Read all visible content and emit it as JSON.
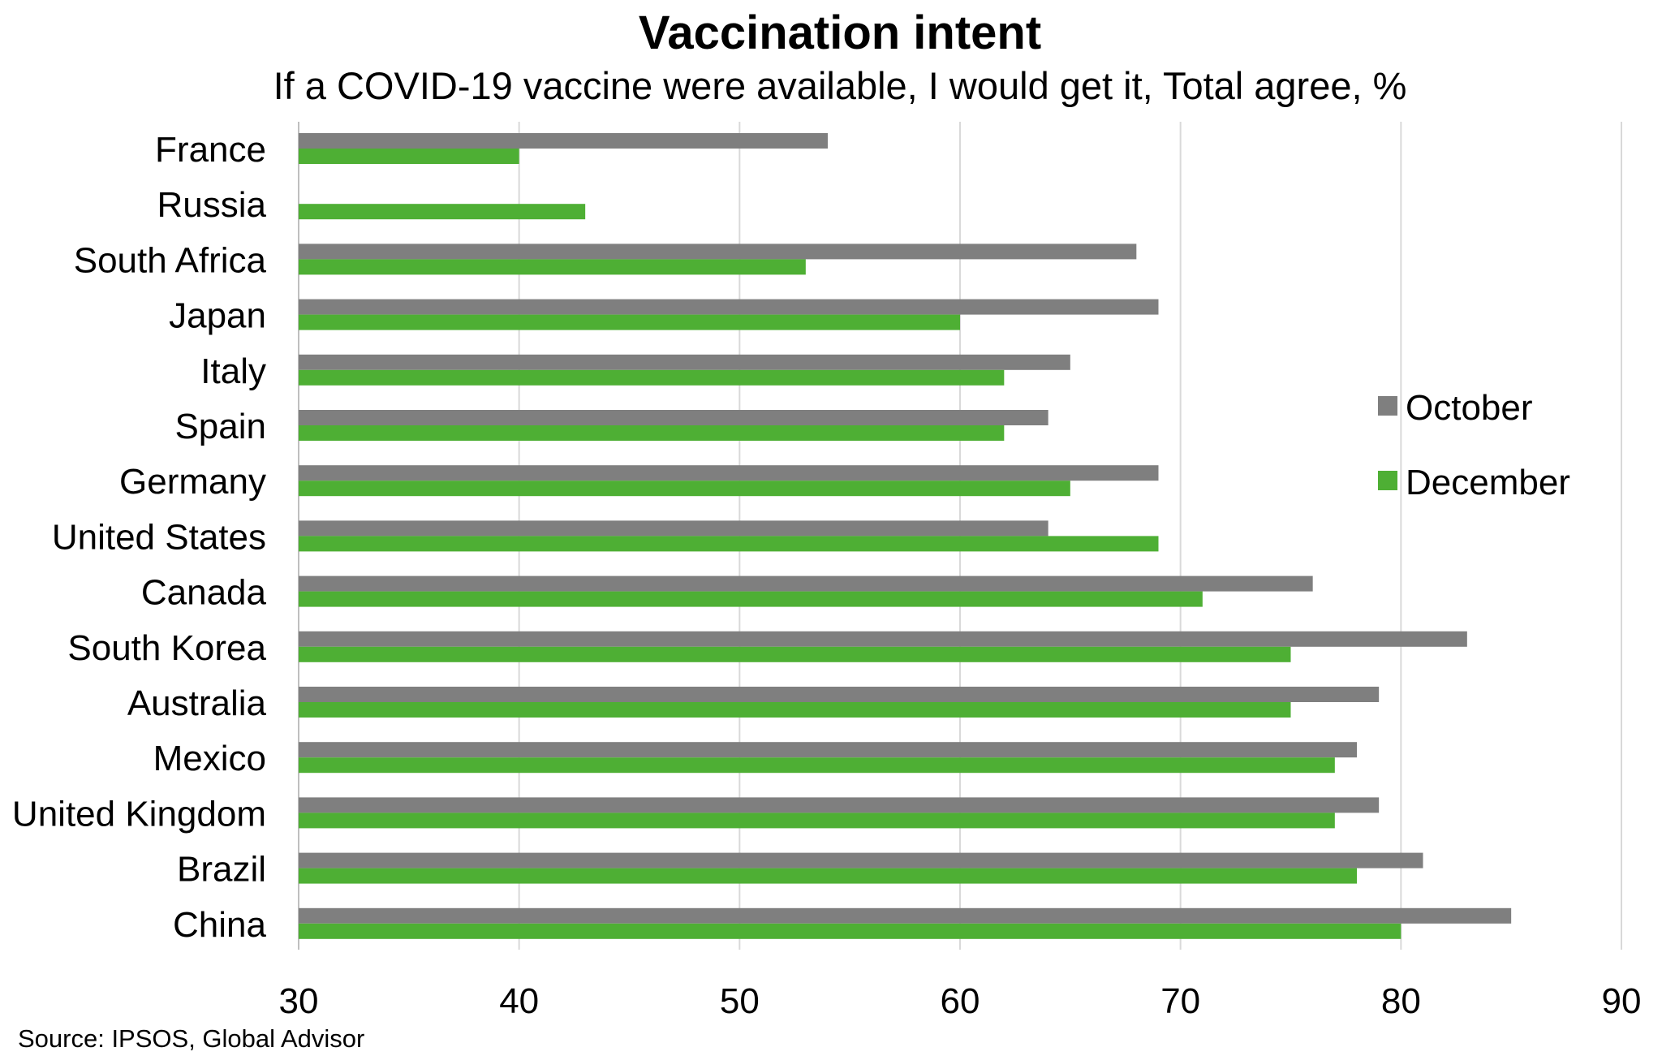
{
  "chart_data": {
    "type": "bar",
    "orientation": "horizontal",
    "title": "Vaccination intent",
    "subtitle": "If a COVID-19 vaccine were available, I would get it, Total agree, %",
    "xlabel": "",
    "ylabel": "",
    "xlim": [
      30,
      90
    ],
    "x_ticks": [
      "30",
      "40",
      "50",
      "60",
      "70",
      "80",
      "90"
    ],
    "grid": "vertical",
    "legend_position": "right",
    "categories": [
      "France",
      "Russia",
      "South Africa",
      "Japan",
      "Italy",
      "Spain",
      "Germany",
      "United States",
      "Canada",
      "South Korea",
      "Australia",
      "Mexico",
      "United Kingdom",
      "Brazil",
      "China"
    ],
    "series": [
      {
        "name": "October",
        "color": "#7f7f7f",
        "values": [
          54,
          null,
          68,
          69,
          65,
          64,
          69,
          64,
          76,
          83,
          79,
          78,
          79,
          81,
          85
        ]
      },
      {
        "name": "December",
        "color": "#4eaf34",
        "values": [
          40,
          43,
          53,
          60,
          62,
          62,
          65,
          69,
          71,
          75,
          75,
          77,
          77,
          78,
          80
        ]
      }
    ],
    "source": "Source: IPSOS, Global Advisor"
  },
  "colors": {
    "grid": "#d9d9d9",
    "axis": "#bfbfbf",
    "text": "#000000"
  }
}
